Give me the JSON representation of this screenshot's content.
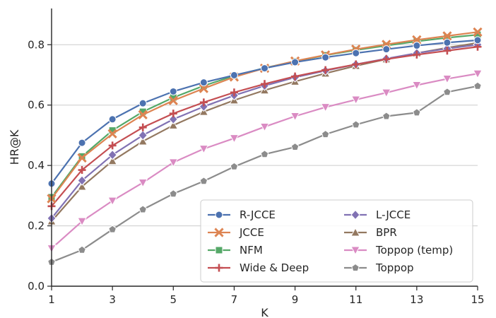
{
  "chart_data": {
    "type": "line",
    "title": "",
    "xlabel": "K",
    "ylabel": "HR@K",
    "xlim": [
      1,
      15
    ],
    "ylim": [
      0,
      0.92
    ],
    "x_ticks": [
      "1",
      "3",
      "5",
      "7",
      "9",
      "11",
      "13",
      "15"
    ],
    "y_ticks": [
      "0.0",
      "0.2",
      "0.4",
      "0.6",
      "0.8"
    ],
    "grid": "horizontal",
    "legend_position": "lower-right",
    "x": [
      1,
      2,
      3,
      4,
      5,
      6,
      7,
      8,
      9,
      10,
      11,
      12,
      13,
      14,
      15
    ],
    "series": [
      {
        "name": "R-JCCE",
        "color": "#4c72b0",
        "marker": "circle",
        "values": [
          0.34,
          0.475,
          0.553,
          0.606,
          0.645,
          0.675,
          0.699,
          0.722,
          0.742,
          0.758,
          0.772,
          0.785,
          0.797,
          0.807,
          0.815
        ]
      },
      {
        "name": "JCCE",
        "color": "#dd8452",
        "marker": "x",
        "values": [
          0.29,
          0.425,
          0.505,
          0.568,
          0.615,
          0.655,
          0.693,
          0.722,
          0.746,
          0.766,
          0.785,
          0.801,
          0.816,
          0.829,
          0.842
        ]
      },
      {
        "name": "NFM",
        "color": "#55a868",
        "marker": "square",
        "values": [
          0.295,
          0.43,
          0.516,
          0.578,
          0.625,
          0.664,
          0.697,
          0.723,
          0.745,
          0.765,
          0.782,
          0.797,
          0.811,
          0.823,
          0.833
        ]
      },
      {
        "name": "Wide & Deep",
        "color": "#c44e52",
        "marker": "plus",
        "values": [
          0.265,
          0.385,
          0.466,
          0.526,
          0.572,
          0.609,
          0.642,
          0.67,
          0.695,
          0.716,
          0.735,
          0.752,
          0.767,
          0.78,
          0.793
        ]
      },
      {
        "name": "L-JCCE",
        "color": "#8172b3",
        "marker": "diamond",
        "values": [
          0.225,
          0.35,
          0.435,
          0.5,
          0.553,
          0.595,
          0.632,
          0.664,
          0.692,
          0.714,
          0.735,
          0.754,
          0.772,
          0.787,
          0.8
        ]
      },
      {
        "name": "BPR",
        "color": "#937860",
        "marker": "triangle-up",
        "values": [
          0.215,
          0.33,
          0.415,
          0.48,
          0.533,
          0.578,
          0.616,
          0.649,
          0.678,
          0.705,
          0.73,
          0.752,
          0.772,
          0.79,
          0.806
        ]
      },
      {
        "name": "Toppop (temp)",
        "color": "#da8bc3",
        "marker": "triangle-down",
        "values": [
          0.125,
          0.215,
          0.283,
          0.343,
          0.41,
          0.455,
          0.49,
          0.528,
          0.563,
          0.593,
          0.618,
          0.641,
          0.666,
          0.687,
          0.704
        ]
      },
      {
        "name": "Toppop",
        "color": "#8c8c8c",
        "marker": "pentagon",
        "values": [
          0.08,
          0.12,
          0.188,
          0.254,
          0.306,
          0.348,
          0.396,
          0.437,
          0.461,
          0.503,
          0.535,
          0.563,
          0.575,
          0.643,
          0.663
        ]
      }
    ]
  }
}
